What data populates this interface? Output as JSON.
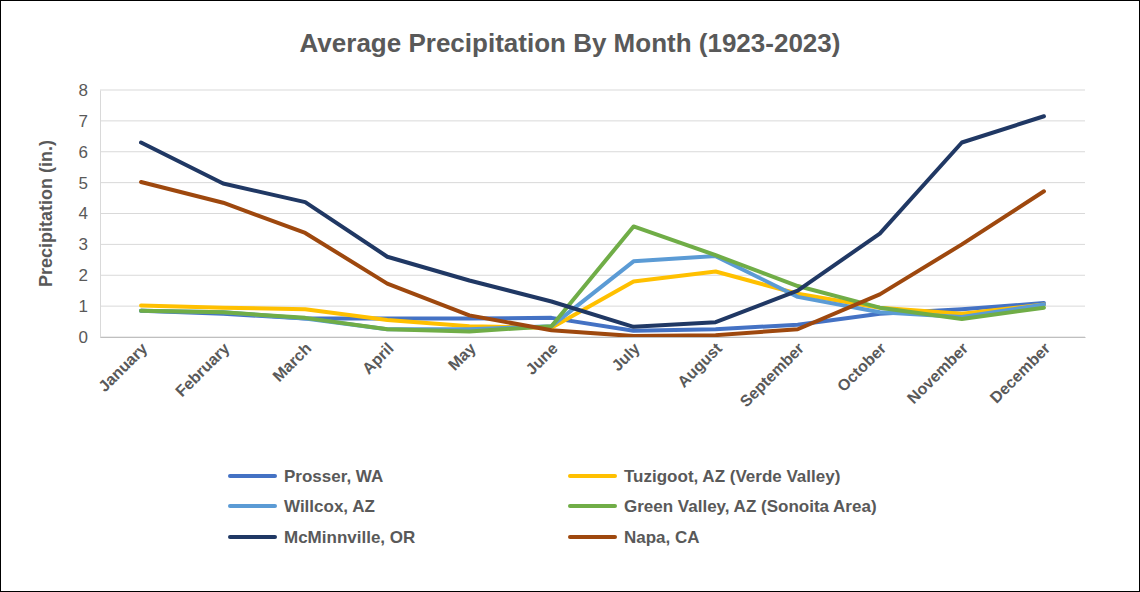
{
  "chart_data": {
    "type": "line",
    "title": "Average Precipitation By Month (1923-2023)",
    "y_label": "Precipitation (in.)",
    "categories": [
      "January",
      "February",
      "March",
      "April",
      "May",
      "June",
      "July",
      "August",
      "September",
      "October",
      "November",
      "December"
    ],
    "series": [
      {
        "name": "Prosser, WA",
        "color": "#4472c4",
        "values": [
          0.85,
          0.75,
          0.6,
          0.6,
          0.6,
          0.62,
          0.2,
          0.25,
          0.4,
          0.75,
          0.9,
          1.1
        ]
      },
      {
        "name": "Tuzigoot, AZ (Verde Valley)",
        "color": "#ffc000",
        "values": [
          1.02,
          0.95,
          0.9,
          0.55,
          0.35,
          0.3,
          1.8,
          2.12,
          1.4,
          0.95,
          0.75,
          1.05
        ]
      },
      {
        "name": "Willcox, AZ",
        "color": "#5b9bd5",
        "values": [
          0.85,
          0.8,
          0.6,
          0.25,
          0.25,
          0.35,
          2.45,
          2.62,
          1.3,
          0.8,
          0.65,
          1.05
        ]
      },
      {
        "name": "Green Valley, AZ (Sonoita Area)",
        "color": "#70ad47",
        "values": [
          0.85,
          0.8,
          0.62,
          0.25,
          0.18,
          0.35,
          3.58,
          2.65,
          1.65,
          0.95,
          0.58,
          0.95
        ]
      },
      {
        "name": "McMinnville, OR",
        "color": "#203864",
        "values": [
          6.3,
          4.97,
          4.37,
          2.6,
          1.83,
          1.15,
          0.33,
          0.48,
          1.5,
          3.35,
          6.3,
          7.15
        ]
      },
      {
        "name": "Napa, CA",
        "color": "#9e480e",
        "values": [
          5.02,
          4.35,
          3.37,
          1.73,
          0.7,
          0.22,
          0.03,
          0.06,
          0.25,
          1.38,
          3.0,
          4.72
        ]
      }
    ],
    "ylim": [
      0,
      8
    ],
    "yticks": [
      0,
      1,
      2,
      3,
      4,
      5,
      6,
      7,
      8
    ],
    "grid": true,
    "legend": "bottom"
  }
}
